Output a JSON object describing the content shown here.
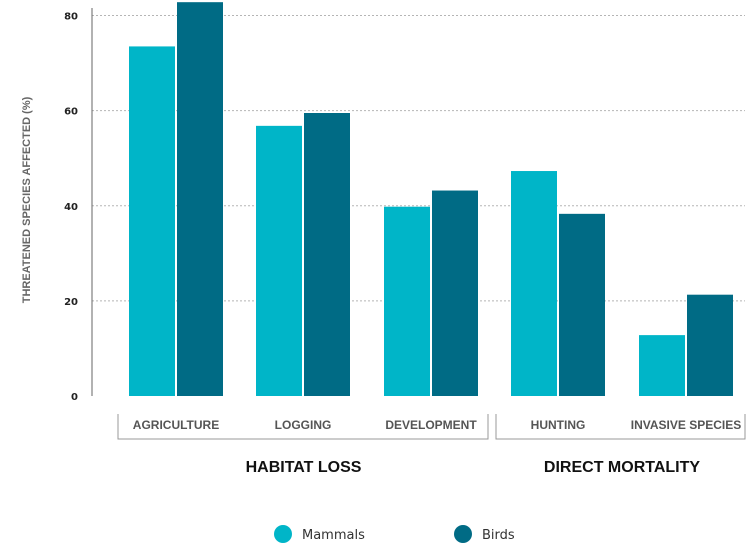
{
  "chart_data": {
    "type": "bar",
    "ylabel": "THREATENED SPECIES AFFECTED (%)",
    "xlabel": "",
    "ylim": [
      0,
      85
    ],
    "yticks": [
      0,
      20,
      40,
      60,
      80
    ],
    "grid": true,
    "legend_position": "bottom",
    "categories": [
      "AGRICULTURE",
      "LOGGING",
      "DEVELOPMENT",
      "HUNTING",
      "INVASIVE SPECIES"
    ],
    "groups": [
      {
        "label": "HABITAT LOSS",
        "categories": [
          "AGRICULTURE",
          "LOGGING",
          "DEVELOPMENT"
        ]
      },
      {
        "label": "DIRECT MORTALITY",
        "categories": [
          "HUNTING",
          "INVASIVE SPECIES"
        ]
      }
    ],
    "series": [
      {
        "name": "Mammals",
        "color": "#00b5c8",
        "values": [
          73.5,
          56.8,
          39.8,
          47.3,
          12.8
        ]
      },
      {
        "name": "Birds",
        "color": "#006b85",
        "values": [
          82.8,
          59.5,
          43.2,
          38.3,
          21.3
        ]
      }
    ]
  }
}
